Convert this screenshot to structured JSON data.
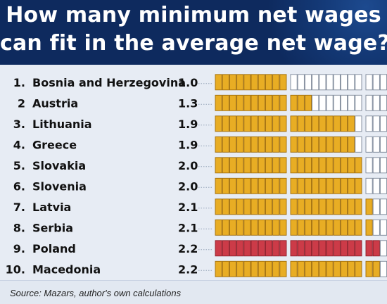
{
  "title_line1": "How many minimum net wages",
  "title_line2": "can fit in the average net wage?",
  "source": "Source: Mazars, author's own calculations",
  "colors": {
    "header": "#0e2a5e",
    "fill": "#e8ad24",
    "fill_stroke": "#a06d0a",
    "highlight": "#cc3b48",
    "highlight_stroke": "#8e1f2a",
    "empty": "#ffffff",
    "empty_stroke": "#7c8797"
  },
  "chart_data": {
    "type": "bar",
    "units_per_group": 10,
    "groups_max": 2.2,
    "highlight_index": 8,
    "rows": [
      {
        "rank": "1.",
        "country": "Bosnia and Herzegovina",
        "value_label": "1.0",
        "value": 1.0
      },
      {
        "rank": "2",
        "country": "Austria",
        "value_label": "1.3",
        "value": 1.3
      },
      {
        "rank": "3.",
        "country": "Lithuania",
        "value_label": "1.9",
        "value": 1.9
      },
      {
        "rank": "4.",
        "country": "Greece",
        "value_label": "1.9",
        "value": 1.9
      },
      {
        "rank": "5.",
        "country": "Slovakia",
        "value_label": "2.0",
        "value": 2.0
      },
      {
        "rank": "6.",
        "country": "Slovenia",
        "value_label": "2.0",
        "value": 2.0
      },
      {
        "rank": "7.",
        "country": "Latvia",
        "value_label": "2.1",
        "value": 2.1
      },
      {
        "rank": "8.",
        "country": "Serbia",
        "value_label": "2.1",
        "value": 2.1
      },
      {
        "rank": "9.",
        "country": "Poland",
        "value_label": "2.2",
        "value": 2.2
      },
      {
        "rank": "10.",
        "country": "Macedonia",
        "value_label": "2.2",
        "value": 2.2
      }
    ]
  }
}
